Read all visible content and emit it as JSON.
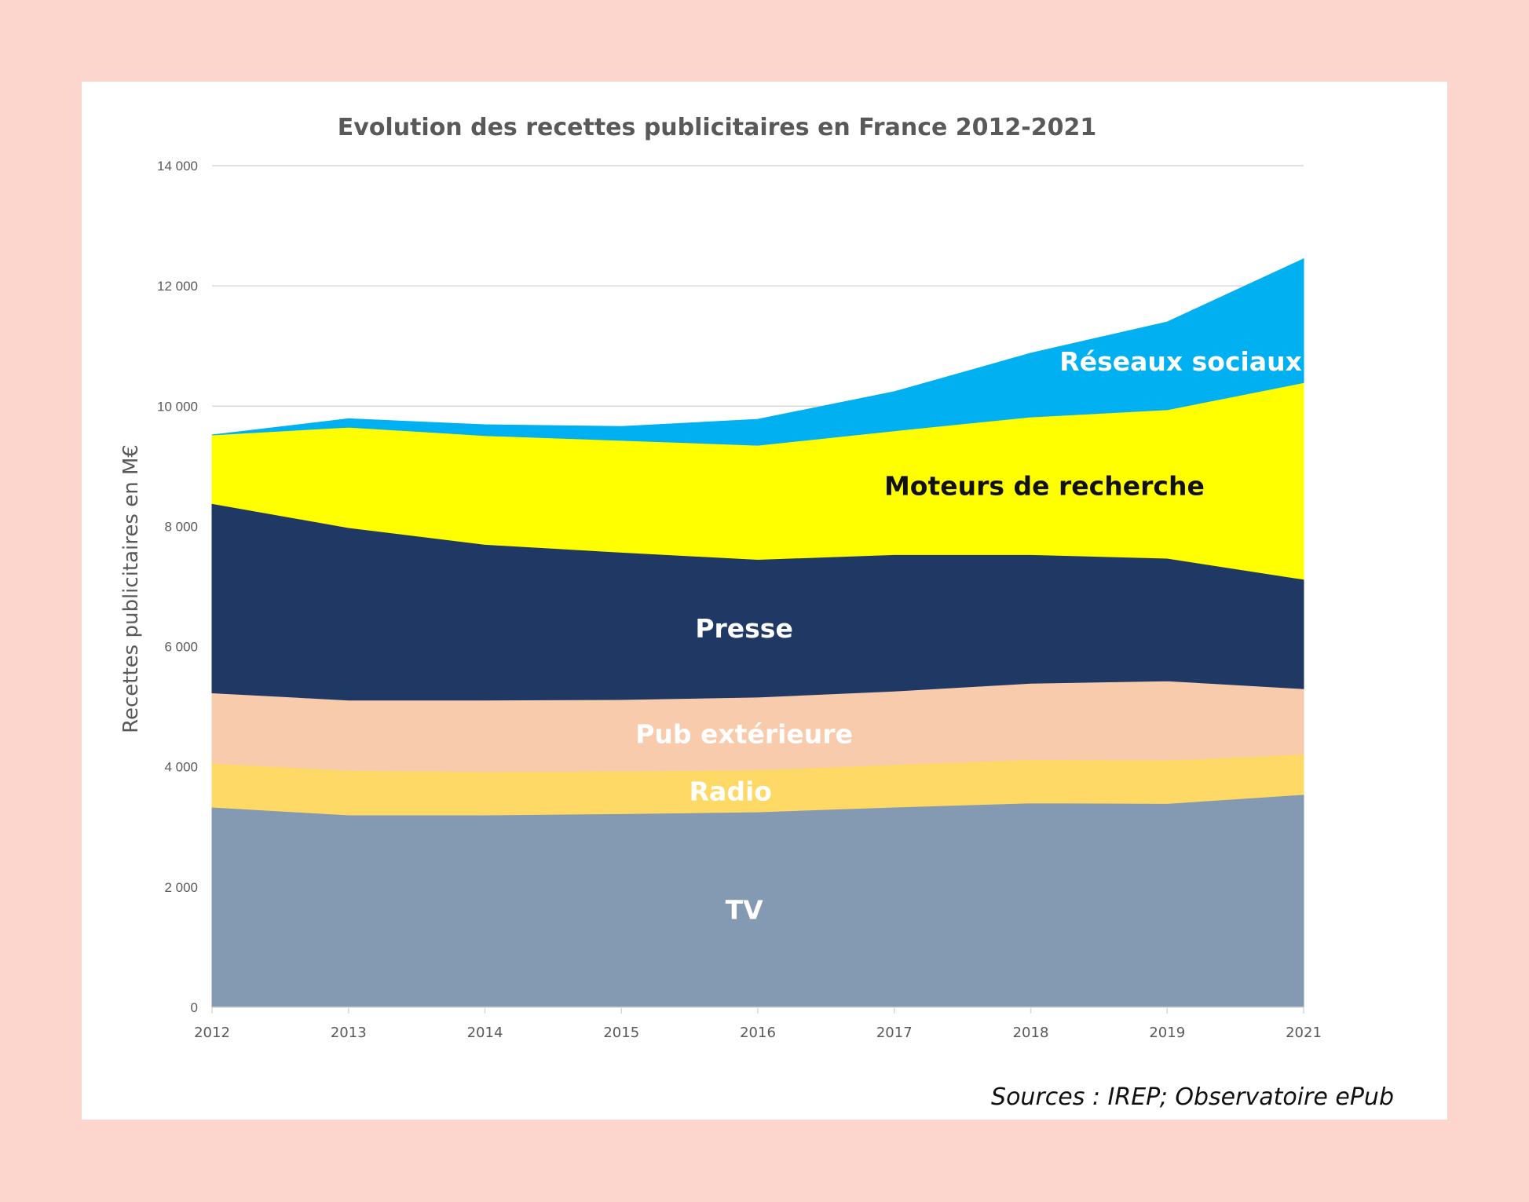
{
  "source": "Sources : IREP; Observatoire ePub",
  "chart_data": {
    "type": "area",
    "stacked": true,
    "title": "Evolution des recettes publicitaires en France 2012-2021",
    "xlabel": "",
    "ylabel": "Recettes publicitaires en M€",
    "x": [
      "2012",
      "2013",
      "2014",
      "2015",
      "2016",
      "2017",
      "2018",
      "2019",
      "2021"
    ],
    "ylim": [
      0,
      14000
    ],
    "yticks": [
      0,
      2000,
      4000,
      6000,
      8000,
      10000,
      12000,
      14000
    ],
    "ytick_labels": [
      "0",
      "2 000",
      "4 000",
      "6 000",
      "8 000",
      "10 000",
      "12 000",
      "14 000"
    ],
    "grid": true,
    "legend": "none (labels inside areas)",
    "series": [
      {
        "name": "TV",
        "color": "#8499b2",
        "label_color": "#ffffff",
        "values": [
          3330,
          3200,
          3200,
          3220,
          3250,
          3330,
          3400,
          3390,
          3540
        ]
      },
      {
        "name": "Radio",
        "color": "#ffd966",
        "label_color": "#ffffff",
        "values": [
          730,
          740,
          720,
          710,
          700,
          710,
          720,
          720,
          670
        ]
      },
      {
        "name": "Pub extérieure",
        "color": "#f8cbad",
        "label_color": "#ffffff",
        "values": [
          1170,
          1170,
          1190,
          1190,
          1210,
          1220,
          1270,
          1320,
          1090
        ]
      },
      {
        "name": "Presse",
        "color": "#203864",
        "label_color": "#ffffff",
        "values": [
          3150,
          2870,
          2590,
          2450,
          2290,
          2270,
          2140,
          2040,
          1820
        ]
      },
      {
        "name": "Moteurs de recherche",
        "color": "#ffff00",
        "label_color": "#111111",
        "values": [
          1140,
          1670,
          1810,
          1860,
          1900,
          2060,
          2290,
          2470,
          3270
        ]
      },
      {
        "name": "Réseaux sociaux",
        "color": "#00b0f0",
        "label_color": "#ffffff",
        "values": [
          0,
          140,
          180,
          230,
          430,
          650,
          1060,
          1460,
          2060
        ]
      }
    ]
  }
}
